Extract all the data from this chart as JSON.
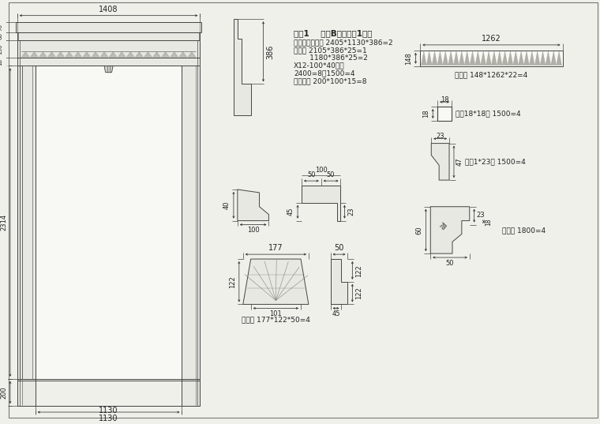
{
  "bg_color": "#f0f0eb",
  "line_color": "#444444",
  "text_color": "#222222",
  "fill_light": "#e8e8e3",
  "fill_white": "#f8f8f5",
  "title_line1": "序号1    客厅B立面倥口1料单",
  "subtitle_lines": [
    "门框内径尺寸： 2405*1130*386=2",
    "主板： 2105*386*25=1",
    "       1180*386*25=2",
    "X12-100*40线条",
    "2400=8，1500=4",
    "配底座： 200*100*15=8"
  ],
  "label_tucai": "江板： 148*1262*22=4",
  "label_yazhu": "压条18*18： 1500=4",
  "label_yaxian": "压畇1*23： 1500=4",
  "label_ditou": "假头： 1800=4",
  "label_diaohua": "雕花： 177*122*50=4"
}
